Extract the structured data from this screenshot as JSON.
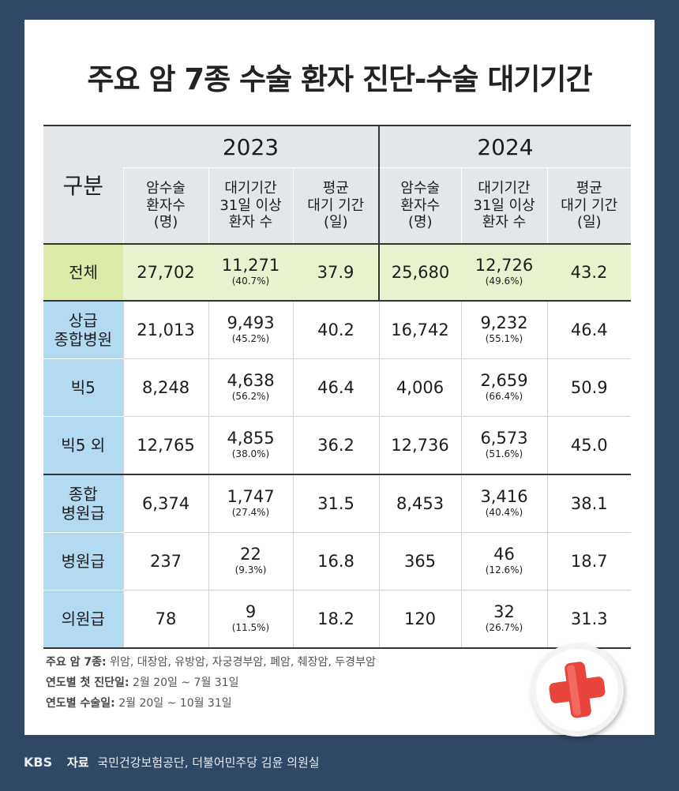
{
  "title": "주요 암 7종 수술 환자 진단-수술 대기기간",
  "header": {
    "gubun": "구분",
    "years": [
      "2023",
      "2024"
    ],
    "col_patients": [
      "암수술",
      "환자수",
      "(명)"
    ],
    "col_wait31": [
      "대기기간",
      "31일 이상",
      "환자 수"
    ],
    "col_avg": [
      "평균",
      "대기 기간",
      "(일)"
    ]
  },
  "rows": [
    {
      "label": "전체",
      "y23": {
        "patients": "27,702",
        "wait31": "11,271",
        "pct": "(40.7%)",
        "avg": "37.9"
      },
      "y24": {
        "patients": "25,680",
        "wait31": "12,726",
        "pct": "(49.6%)",
        "avg": "43.2"
      }
    },
    {
      "label": "상급 종합병원",
      "y23": {
        "patients": "21,013",
        "wait31": "9,493",
        "pct": "(45.2%)",
        "avg": "40.2"
      },
      "y24": {
        "patients": "16,742",
        "wait31": "9,232",
        "pct": "(55.1%)",
        "avg": "46.4"
      }
    },
    {
      "label": "빅5",
      "y23": {
        "patients": "8,248",
        "wait31": "4,638",
        "pct": "(56.2%)",
        "avg": "46.4"
      },
      "y24": {
        "patients": "4,006",
        "wait31": "2,659",
        "pct": "(66.4%)",
        "avg": "50.9"
      }
    },
    {
      "label": "빅5 외",
      "y23": {
        "patients": "12,765",
        "wait31": "4,855",
        "pct": "(38.0%)",
        "avg": "36.2"
      },
      "y24": {
        "patients": "12,736",
        "wait31": "6,573",
        "pct": "(51.6%)",
        "avg": "45.0"
      }
    },
    {
      "label": "종합 병원급",
      "y23": {
        "patients": "6,374",
        "wait31": "1,747",
        "pct": "(27.4%)",
        "avg": "31.5"
      },
      "y24": {
        "patients": "8,453",
        "wait31": "3,416",
        "pct": "(40.4%)",
        "avg": "38.1"
      }
    },
    {
      "label": "병원급",
      "y23": {
        "patients": "237",
        "wait31": "22",
        "pct": "(9.3%)",
        "avg": "16.8"
      },
      "y24": {
        "patients": "365",
        "wait31": "46",
        "pct": "(12.6%)",
        "avg": "18.7"
      }
    },
    {
      "label": "의원급",
      "y23": {
        "patients": "78",
        "wait31": "9",
        "pct": "(11.5%)",
        "avg": "18.2"
      },
      "y24": {
        "patients": "120",
        "wait31": "32",
        "pct": "(26.7%)",
        "avg": "31.3"
      }
    }
  ],
  "notes": {
    "cancers_label": "주요 암 7종:",
    "cancers_value": "위암, 대장암, 유방암, 자궁경부암, 폐암, 췌장암, 두경부암",
    "diagnosis_label": "연도별 첫 진단일:",
    "diagnosis_value": "2월 20일 ~ 7월 31일",
    "surgery_label": "연도별 수술일:",
    "surgery_value": "2월 20일 ~ 10월 31일"
  },
  "footer": {
    "logo": "KBS",
    "source_label": "자료",
    "source_value": "국민건강보험공단, 더불어민주당 김윤 의원실"
  },
  "colors": {
    "background": "#2f4865",
    "header_gray": "#e4e7ea",
    "total_green": "#ddeba8",
    "label_blue": "#b2daf1",
    "cross_red": "#e8453c"
  },
  "icons": {
    "badge": "red-cross-icon"
  }
}
